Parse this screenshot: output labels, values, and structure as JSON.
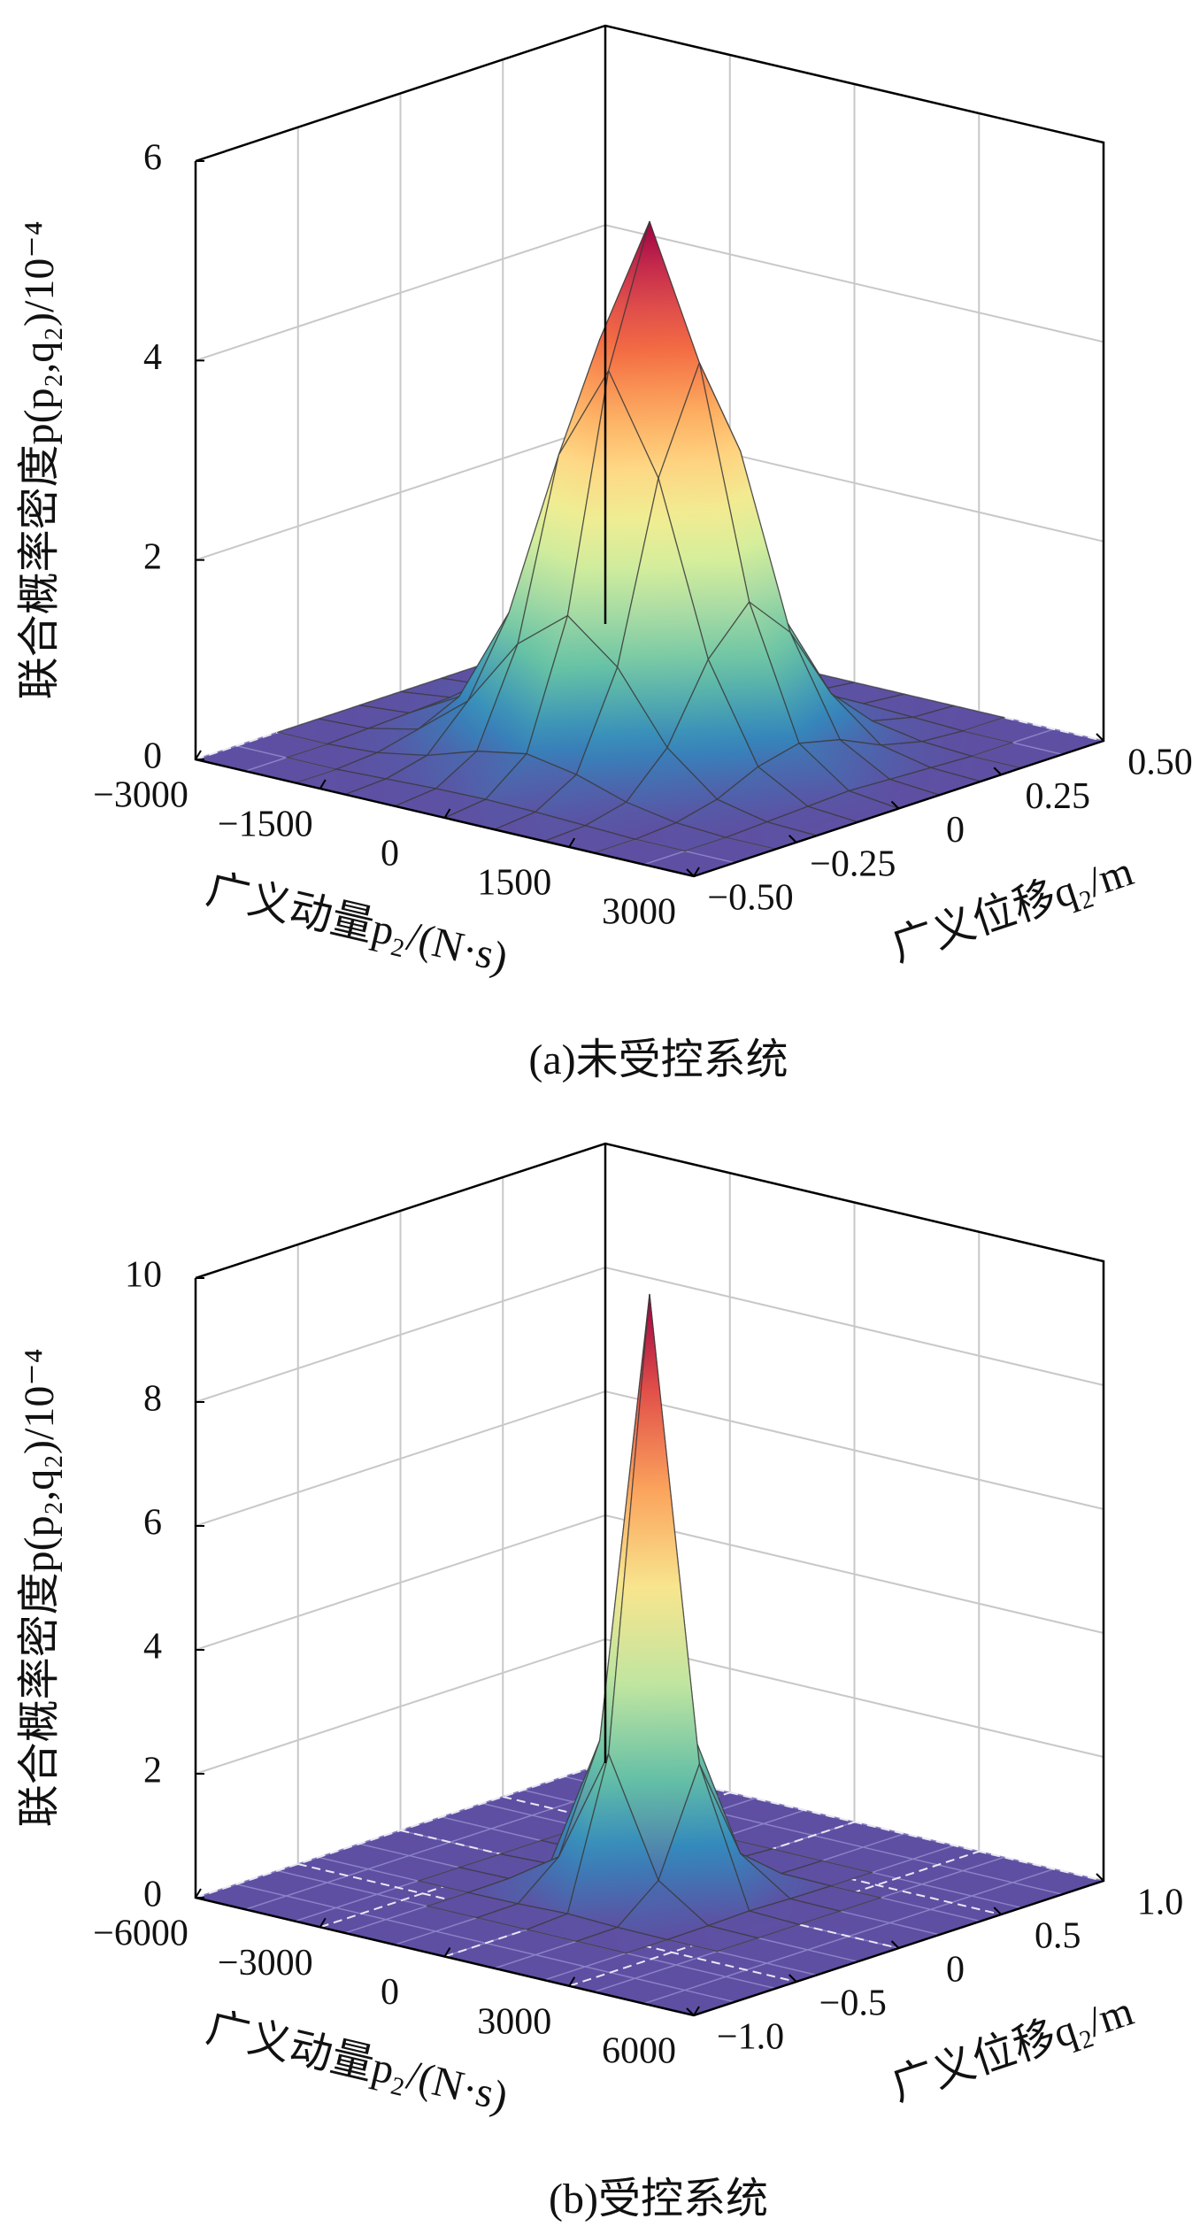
{
  "chart_data": [
    {
      "type": "surface",
      "caption": "(a)未受控系统",
      "xlabel": "广义动量p₂/(N·s)",
      "ylabel": "广义位移q₂/m",
      "zlabel": "联合概率密度p(p₂,q₂)/10⁻⁴",
      "x": [
        -3000,
        -2400,
        -1800,
        -1200,
        -600,
        0,
        600,
        1200,
        1800,
        2400,
        3000
      ],
      "y": [
        -0.5,
        -0.4,
        -0.3,
        -0.2,
        -0.1,
        0,
        0.1,
        0.2,
        0.3,
        0.4,
        0.5
      ],
      "z": [
        [
          0,
          0,
          0,
          0,
          0,
          0,
          0,
          0,
          0,
          0,
          0
        ],
        [
          0,
          0,
          0,
          0.02,
          0.04,
          0.05,
          0.04,
          0.02,
          0,
          0,
          0
        ],
        [
          0,
          0,
          0.03,
          0.12,
          0.28,
          0.37,
          0.28,
          0.12,
          0.03,
          0,
          0
        ],
        [
          0,
          0.02,
          0.13,
          0.53,
          1.22,
          1.62,
          1.22,
          0.53,
          0.13,
          0.02,
          0
        ],
        [
          0,
          0.04,
          0.32,
          1.28,
          2.98,
          3.94,
          2.98,
          1.28,
          0.32,
          0.04,
          0
        ],
        [
          0,
          0.06,
          0.42,
          1.72,
          4.0,
          5.3,
          4.0,
          1.72,
          0.42,
          0.06,
          0
        ],
        [
          0,
          0.04,
          0.32,
          1.28,
          2.98,
          3.94,
          2.98,
          1.28,
          0.32,
          0.04,
          0
        ],
        [
          0,
          0.02,
          0.13,
          0.53,
          1.22,
          1.62,
          1.22,
          0.53,
          0.13,
          0.02,
          0
        ],
        [
          0,
          0,
          0.03,
          0.12,
          0.28,
          0.37,
          0.28,
          0.12,
          0.03,
          0,
          0
        ],
        [
          0,
          0,
          0,
          0.02,
          0.04,
          0.05,
          0.04,
          0.02,
          0,
          0,
          0
        ],
        [
          0,
          0,
          0,
          0,
          0,
          0,
          0,
          0,
          0,
          0,
          0
        ]
      ],
      "xlim": [
        -3000,
        3000
      ],
      "xticks": [
        {
          "value": -3000,
          "label": "−3000"
        },
        {
          "value": -1500,
          "label": "−1500"
        },
        0,
        1500,
        3000
      ],
      "ylim": [
        -0.5,
        0.5
      ],
      "yticks": [
        {
          "value": -0.5,
          "label": "−0.50"
        },
        {
          "value": -0.25,
          "label": "−0.25"
        },
        0,
        0.25,
        {
          "value": 0.5,
          "label": "0.50"
        }
      ],
      "zlim": [
        0,
        6
      ],
      "zticks": [
        0,
        2,
        4,
        6
      ],
      "grid": true,
      "colormap": [
        "#5e4fa2",
        "#3288bd",
        "#66c2a5",
        "#abdda4",
        "#e6f598",
        "#fee08b",
        "#fdae61",
        "#f46d43",
        "#d53e4f",
        "#9e0142"
      ]
    },
    {
      "type": "surface",
      "caption": "(b)受控系统",
      "xlabel": "广义动量p₂/(N·s)",
      "ylabel": "广义位移q₂/m",
      "zlabel": "联合概率密度p(p₂,q₂)/10⁻⁴",
      "x": [
        -6000,
        -4800,
        -3600,
        -2400,
        -1200,
        0,
        1200,
        2400,
        3600,
        4800,
        6000
      ],
      "y": [
        -1,
        -0.8,
        -0.6,
        -0.4,
        -0.2,
        0,
        0.2,
        0.4,
        0.6,
        0.8,
        1
      ],
      "z": [
        [
          0,
          0,
          0,
          0,
          0,
          0,
          0,
          0,
          0,
          0,
          0
        ],
        [
          0,
          0,
          0,
          0,
          0,
          0,
          0,
          0,
          0,
          0,
          0
        ],
        [
          0,
          0,
          0,
          0,
          0,
          0,
          0,
          0,
          0,
          0,
          0
        ],
        [
          0,
          0,
          0,
          0,
          0.01,
          0.04,
          0.01,
          0,
          0,
          0,
          0
        ],
        [
          0,
          0,
          0,
          0.01,
          0.55,
          2.4,
          0.55,
          0.01,
          0,
          0,
          0
        ],
        [
          0,
          0,
          0,
          0.03,
          2.21,
          9.6,
          2.21,
          0.03,
          0,
          0,
          0
        ],
        [
          0,
          0,
          0,
          0.01,
          0.55,
          2.4,
          0.55,
          0.01,
          0,
          0,
          0
        ],
        [
          0,
          0,
          0,
          0,
          0.01,
          0.04,
          0.01,
          0,
          0,
          0,
          0
        ],
        [
          0,
          0,
          0,
          0,
          0,
          0,
          0,
          0,
          0,
          0,
          0
        ],
        [
          0,
          0,
          0,
          0,
          0,
          0,
          0,
          0,
          0,
          0,
          0
        ],
        [
          0,
          0,
          0,
          0,
          0,
          0,
          0,
          0,
          0,
          0,
          0
        ]
      ],
      "xlim": [
        -6000,
        6000
      ],
      "xticks": [
        {
          "value": -6000,
          "label": "−6000"
        },
        {
          "value": -3000,
          "label": "−3000"
        },
        0,
        3000,
        6000
      ],
      "ylim": [
        -1,
        1
      ],
      "yticks": [
        {
          "value": -1,
          "label": "−1.0"
        },
        {
          "value": -0.5,
          "label": "−0.5"
        },
        0,
        0.5,
        {
          "value": 1,
          "label": "1.0"
        }
      ],
      "zlim": [
        0,
        10
      ],
      "zticks": [
        0,
        2,
        4,
        6,
        8,
        10
      ],
      "grid": true,
      "colormap": [
        "#5e4fa2",
        "#3288bd",
        "#66c2a5",
        "#abdda4",
        "#e6f598",
        "#fee08b",
        "#fdae61",
        "#f46d43",
        "#d53e4f",
        "#9e0142"
      ]
    }
  ]
}
